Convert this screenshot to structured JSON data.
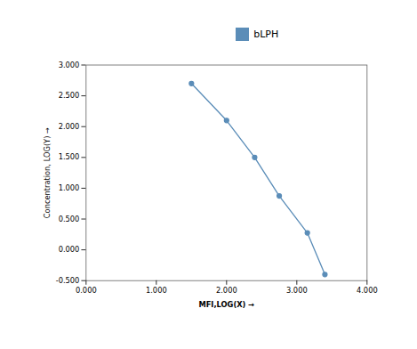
{
  "chart_data": {
    "type": "line",
    "x": [
      1.5,
      2.0,
      2.4,
      2.75,
      3.15,
      3.4
    ],
    "series": [
      {
        "name": "bLPH",
        "color": "#5B8DB8",
        "marker": "circle",
        "values": [
          2.7,
          2.1,
          1.5,
          0.875,
          0.275,
          -0.4
        ]
      }
    ],
    "xlabel": "MFI,LOG(X)",
    "ylabel": "Concentration, LOG(Y)",
    "xlim": [
      0.0,
      4.0
    ],
    "ylim": [
      -0.5,
      3.0
    ],
    "xticks": [
      {
        "value": 0.0,
        "label": "0.000"
      },
      {
        "value": 1.0,
        "label": "1.000"
      },
      {
        "value": 2.0,
        "label": "2.000"
      },
      {
        "value": 3.0,
        "label": "3.000"
      },
      {
        "value": 4.0,
        "label": "4.000"
      }
    ],
    "yticks": [
      {
        "value": -0.5,
        "label": "-0.500"
      },
      {
        "value": 0.0,
        "label": "0.000"
      },
      {
        "value": 0.5,
        "label": "0.500"
      },
      {
        "value": 1.0,
        "label": "1.000"
      },
      {
        "value": 1.5,
        "label": "1.500"
      },
      {
        "value": 2.0,
        "label": "2.000"
      },
      {
        "value": 2.5,
        "label": "2.500"
      },
      {
        "value": 3.0,
        "label": "3.000"
      }
    ],
    "grid": false,
    "legend": "top"
  }
}
